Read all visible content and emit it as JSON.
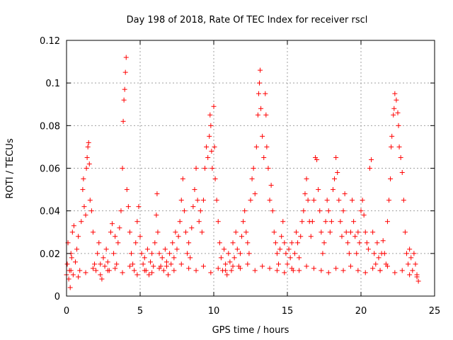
{
  "chart_data": {
    "type": "scatter",
    "title": "Day 198 of 2018, Rate Of TEC Index for receiver rscl",
    "xlabel": "GPS time / hours",
    "ylabel": "ROTI / TECUs",
    "xlim": [
      0,
      25
    ],
    "ylim": [
      0,
      0.12
    ],
    "xticks": [
      0,
      5,
      10,
      15,
      20,
      25
    ],
    "xtick_labels": [
      "0",
      "5",
      "10",
      "15",
      "20",
      "25"
    ],
    "yticks": [
      0,
      0.02,
      0.04,
      0.06,
      0.08,
      0.1,
      0.12
    ],
    "ytick_labels": [
      "0",
      "0.02",
      "0.04",
      "0.06",
      "0.08",
      "0.1",
      "0.12"
    ],
    "grid": true,
    "marker": "+",
    "color": "#ff0000",
    "series": [
      {
        "name": "ROTI",
        "points": [
          [
            0.05,
            0.015
          ],
          [
            0.1,
            0.025
          ],
          [
            0.15,
            0.008
          ],
          [
            0.2,
            0.012
          ],
          [
            0.25,
            0.004
          ],
          [
            0.3,
            0.02
          ],
          [
            0.35,
            0.018
          ],
          [
            0.4,
            0.03
          ],
          [
            0.45,
            0.01
          ],
          [
            0.5,
            0.033
          ],
          [
            0.6,
            0.016
          ],
          [
            0.7,
            0.022
          ],
          [
            0.8,
            0.028
          ],
          [
            0.9,
            0.012
          ],
          [
            1.0,
            0.035
          ],
          [
            1.1,
            0.05
          ],
          [
            1.15,
            0.055
          ],
          [
            1.2,
            0.042
          ],
          [
            1.3,
            0.038
          ],
          [
            1.35,
            0.06
          ],
          [
            1.4,
            0.065
          ],
          [
            1.45,
            0.07
          ],
          [
            1.5,
            0.072
          ],
          [
            1.55,
            0.062
          ],
          [
            1.6,
            0.045
          ],
          [
            1.7,
            0.04
          ],
          [
            1.8,
            0.03
          ],
          [
            1.9,
            0.015
          ],
          [
            2.0,
            0.012
          ],
          [
            2.1,
            0.02
          ],
          [
            2.2,
            0.025
          ],
          [
            2.3,
            0.01
          ],
          [
            2.4,
            0.008
          ],
          [
            2.5,
            0.018
          ],
          [
            2.6,
            0.014
          ],
          [
            2.7,
            0.022
          ],
          [
            2.8,
            0.016
          ],
          [
            2.9,
            0.012
          ],
          [
            3.0,
            0.03
          ],
          [
            3.1,
            0.034
          ],
          [
            3.2,
            0.02
          ],
          [
            3.3,
            0.028
          ],
          [
            3.4,
            0.015
          ],
          [
            3.5,
            0.025
          ],
          [
            3.6,
            0.032
          ],
          [
            3.7,
            0.04
          ],
          [
            3.8,
            0.06
          ],
          [
            3.85,
            0.082
          ],
          [
            3.9,
            0.092
          ],
          [
            3.95,
            0.097
          ],
          [
            4.0,
            0.105
          ],
          [
            4.05,
            0.112
          ],
          [
            4.1,
            0.05
          ],
          [
            4.2,
            0.042
          ],
          [
            4.3,
            0.03
          ],
          [
            4.4,
            0.02
          ],
          [
            4.5,
            0.015
          ],
          [
            4.6,
            0.012
          ],
          [
            4.7,
            0.025
          ],
          [
            4.8,
            0.035
          ],
          [
            4.9,
            0.042
          ],
          [
            5.0,
            0.028
          ],
          [
            5.1,
            0.02
          ],
          [
            5.2,
            0.015
          ],
          [
            5.3,
            0.018
          ],
          [
            5.4,
            0.012
          ],
          [
            5.5,
            0.022
          ],
          [
            5.6,
            0.01
          ],
          [
            5.7,
            0.016
          ],
          [
            5.8,
            0.02
          ],
          [
            5.9,
            0.014
          ],
          [
            6.0,
            0.025
          ],
          [
            6.1,
            0.038
          ],
          [
            6.15,
            0.048
          ],
          [
            6.2,
            0.03
          ],
          [
            6.3,
            0.02
          ],
          [
            6.4,
            0.014
          ],
          [
            6.5,
            0.018
          ],
          [
            6.6,
            0.012
          ],
          [
            6.7,
            0.022
          ],
          [
            6.8,
            0.016
          ],
          [
            6.9,
            0.01
          ],
          [
            7.0,
            0.02
          ],
          [
            7.1,
            0.015
          ],
          [
            7.2,
            0.025
          ],
          [
            7.3,
            0.018
          ],
          [
            7.4,
            0.03
          ],
          [
            7.5,
            0.022
          ],
          [
            7.6,
            0.028
          ],
          [
            7.7,
            0.035
          ],
          [
            7.8,
            0.045
          ],
          [
            7.9,
            0.055
          ],
          [
            8.0,
            0.04
          ],
          [
            8.1,
            0.03
          ],
          [
            8.2,
            0.02
          ],
          [
            8.3,
            0.025
          ],
          [
            8.4,
            0.018
          ],
          [
            8.5,
            0.032
          ],
          [
            8.6,
            0.042
          ],
          [
            8.7,
            0.05
          ],
          [
            8.8,
            0.06
          ],
          [
            8.9,
            0.045
          ],
          [
            9.0,
            0.035
          ],
          [
            9.1,
            0.04
          ],
          [
            9.2,
            0.03
          ],
          [
            9.3,
            0.045
          ],
          [
            9.4,
            0.06
          ],
          [
            9.5,
            0.07
          ],
          [
            9.6,
            0.065
          ],
          [
            9.7,
            0.075
          ],
          [
            9.75,
            0.085
          ],
          [
            9.8,
            0.08
          ],
          [
            9.85,
            0.068
          ],
          [
            9.9,
            0.06
          ],
          [
            10.0,
            0.089
          ],
          [
            10.05,
            0.07
          ],
          [
            10.1,
            0.055
          ],
          [
            10.2,
            0.045
          ],
          [
            10.3,
            0.035
          ],
          [
            10.4,
            0.025
          ],
          [
            10.5,
            0.018
          ],
          [
            10.6,
            0.012
          ],
          [
            10.7,
            0.022
          ],
          [
            10.8,
            0.015
          ],
          [
            10.9,
            0.01
          ],
          [
            11.0,
            0.02
          ],
          [
            11.1,
            0.016
          ],
          [
            11.2,
            0.012
          ],
          [
            11.3,
            0.025
          ],
          [
            11.4,
            0.018
          ],
          [
            11.5,
            0.03
          ],
          [
            11.6,
            0.022
          ],
          [
            11.7,
            0.014
          ],
          [
            11.8,
            0.02
          ],
          [
            11.9,
            0.028
          ],
          [
            12.0,
            0.035
          ],
          [
            12.1,
            0.04
          ],
          [
            12.2,
            0.03
          ],
          [
            12.3,
            0.025
          ],
          [
            12.4,
            0.02
          ],
          [
            12.5,
            0.045
          ],
          [
            12.6,
            0.055
          ],
          [
            12.7,
            0.06
          ],
          [
            12.8,
            0.048
          ],
          [
            12.9,
            0.07
          ],
          [
            13.0,
            0.085
          ],
          [
            13.05,
            0.095
          ],
          [
            13.1,
            0.1
          ],
          [
            13.15,
            0.106
          ],
          [
            13.2,
            0.088
          ],
          [
            13.3,
            0.075
          ],
          [
            13.4,
            0.065
          ],
          [
            13.5,
            0.095
          ],
          [
            13.55,
            0.085
          ],
          [
            13.6,
            0.07
          ],
          [
            13.7,
            0.06
          ],
          [
            13.8,
            0.045
          ],
          [
            13.9,
            0.052
          ],
          [
            14.0,
            0.04
          ],
          [
            14.1,
            0.03
          ],
          [
            14.2,
            0.025
          ],
          [
            14.3,
            0.02
          ],
          [
            14.4,
            0.015
          ],
          [
            14.5,
            0.022
          ],
          [
            14.6,
            0.028
          ],
          [
            14.7,
            0.035
          ],
          [
            14.8,
            0.025
          ],
          [
            14.9,
            0.02
          ],
          [
            15.0,
            0.015
          ],
          [
            15.1,
            0.022
          ],
          [
            15.2,
            0.018
          ],
          [
            15.3,
            0.025
          ],
          [
            15.4,
            0.012
          ],
          [
            15.5,
            0.02
          ],
          [
            15.6,
            0.03
          ],
          [
            15.7,
            0.025
          ],
          [
            15.8,
            0.018
          ],
          [
            15.9,
            0.028
          ],
          [
            16.0,
            0.035
          ],
          [
            16.1,
            0.04
          ],
          [
            16.2,
            0.048
          ],
          [
            16.3,
            0.055
          ],
          [
            16.4,
            0.045
          ],
          [
            16.5,
            0.035
          ],
          [
            16.6,
            0.028
          ],
          [
            16.7,
            0.035
          ],
          [
            16.8,
            0.045
          ],
          [
            16.9,
            0.065
          ],
          [
            17.0,
            0.064
          ],
          [
            17.1,
            0.05
          ],
          [
            17.2,
            0.04
          ],
          [
            17.3,
            0.03
          ],
          [
            17.4,
            0.02
          ],
          [
            17.5,
            0.025
          ],
          [
            17.6,
            0.035
          ],
          [
            17.7,
            0.045
          ],
          [
            17.8,
            0.04
          ],
          [
            17.9,
            0.03
          ],
          [
            18.0,
            0.035
          ],
          [
            18.1,
            0.05
          ],
          [
            18.2,
            0.055
          ],
          [
            18.3,
            0.065
          ],
          [
            18.4,
            0.058
          ],
          [
            18.5,
            0.045
          ],
          [
            18.6,
            0.035
          ],
          [
            18.7,
            0.028
          ],
          [
            18.8,
            0.04
          ],
          [
            18.9,
            0.048
          ],
          [
            19.0,
            0.03
          ],
          [
            19.1,
            0.025
          ],
          [
            19.2,
            0.02
          ],
          [
            19.3,
            0.03
          ],
          [
            19.4,
            0.045
          ],
          [
            19.5,
            0.035
          ],
          [
            19.6,
            0.028
          ],
          [
            19.7,
            0.02
          ],
          [
            19.8,
            0.03
          ],
          [
            19.9,
            0.025
          ],
          [
            20.0,
            0.04
          ],
          [
            20.1,
            0.045
          ],
          [
            20.2,
            0.038
          ],
          [
            20.3,
            0.03
          ],
          [
            20.4,
            0.025
          ],
          [
            20.5,
            0.022
          ],
          [
            20.6,
            0.06
          ],
          [
            20.7,
            0.064
          ],
          [
            20.8,
            0.03
          ],
          [
            20.9,
            0.02
          ],
          [
            21.0,
            0.015
          ],
          [
            21.1,
            0.025
          ],
          [
            21.2,
            0.018
          ],
          [
            21.3,
            0.012
          ],
          [
            21.4,
            0.02
          ],
          [
            21.5,
            0.026
          ],
          [
            21.6,
            0.02
          ],
          [
            21.7,
            0.015
          ],
          [
            21.8,
            0.035
          ],
          [
            21.9,
            0.045
          ],
          [
            22.0,
            0.055
          ],
          [
            22.05,
            0.07
          ],
          [
            22.1,
            0.075
          ],
          [
            22.2,
            0.085
          ],
          [
            22.25,
            0.088
          ],
          [
            22.3,
            0.095
          ],
          [
            22.4,
            0.092
          ],
          [
            22.5,
            0.086
          ],
          [
            22.55,
            0.08
          ],
          [
            22.6,
            0.07
          ],
          [
            22.7,
            0.065
          ],
          [
            22.8,
            0.058
          ],
          [
            22.9,
            0.045
          ],
          [
            23.0,
            0.03
          ],
          [
            23.1,
            0.02
          ],
          [
            23.2,
            0.015
          ],
          [
            23.3,
            0.022
          ],
          [
            23.4,
            0.018
          ],
          [
            23.5,
            0.012
          ],
          [
            23.6,
            0.02
          ],
          [
            23.7,
            0.015
          ],
          [
            23.8,
            0.01
          ],
          [
            0.3,
            0.012
          ],
          [
            0.8,
            0.009
          ],
          [
            1.3,
            0.011
          ],
          [
            1.8,
            0.013
          ],
          [
            2.3,
            0.015
          ],
          [
            2.8,
            0.012
          ],
          [
            3.3,
            0.013
          ],
          [
            3.8,
            0.011
          ],
          [
            4.3,
            0.014
          ],
          [
            4.8,
            0.01
          ],
          [
            5.3,
            0.012
          ],
          [
            5.8,
            0.011
          ],
          [
            6.3,
            0.013
          ],
          [
            6.8,
            0.014
          ],
          [
            7.3,
            0.012
          ],
          [
            7.8,
            0.015
          ],
          [
            8.3,
            0.013
          ],
          [
            8.8,
            0.012
          ],
          [
            9.3,
            0.014
          ],
          [
            9.8,
            0.011
          ],
          [
            10.3,
            0.013
          ],
          [
            10.8,
            0.012
          ],
          [
            11.3,
            0.014
          ],
          [
            11.8,
            0.013
          ],
          [
            12.3,
            0.015
          ],
          [
            12.8,
            0.012
          ],
          [
            13.3,
            0.014
          ],
          [
            13.8,
            0.013
          ],
          [
            14.3,
            0.012
          ],
          [
            14.8,
            0.011
          ],
          [
            15.3,
            0.013
          ],
          [
            15.8,
            0.012
          ],
          [
            16.3,
            0.014
          ],
          [
            16.8,
            0.013
          ],
          [
            17.3,
            0.012
          ],
          [
            17.8,
            0.011
          ],
          [
            18.3,
            0.013
          ],
          [
            18.8,
            0.012
          ],
          [
            19.3,
            0.014
          ],
          [
            19.8,
            0.012
          ],
          [
            20.3,
            0.011
          ],
          [
            20.8,
            0.013
          ],
          [
            21.3,
            0.012
          ],
          [
            21.8,
            0.014
          ],
          [
            22.3,
            0.011
          ],
          [
            22.8,
            0.012
          ],
          [
            23.3,
            0.01
          ],
          [
            23.8,
            0.009
          ],
          [
            23.9,
            0.007
          ],
          [
            0.0,
            0.01
          ]
        ]
      }
    ]
  }
}
